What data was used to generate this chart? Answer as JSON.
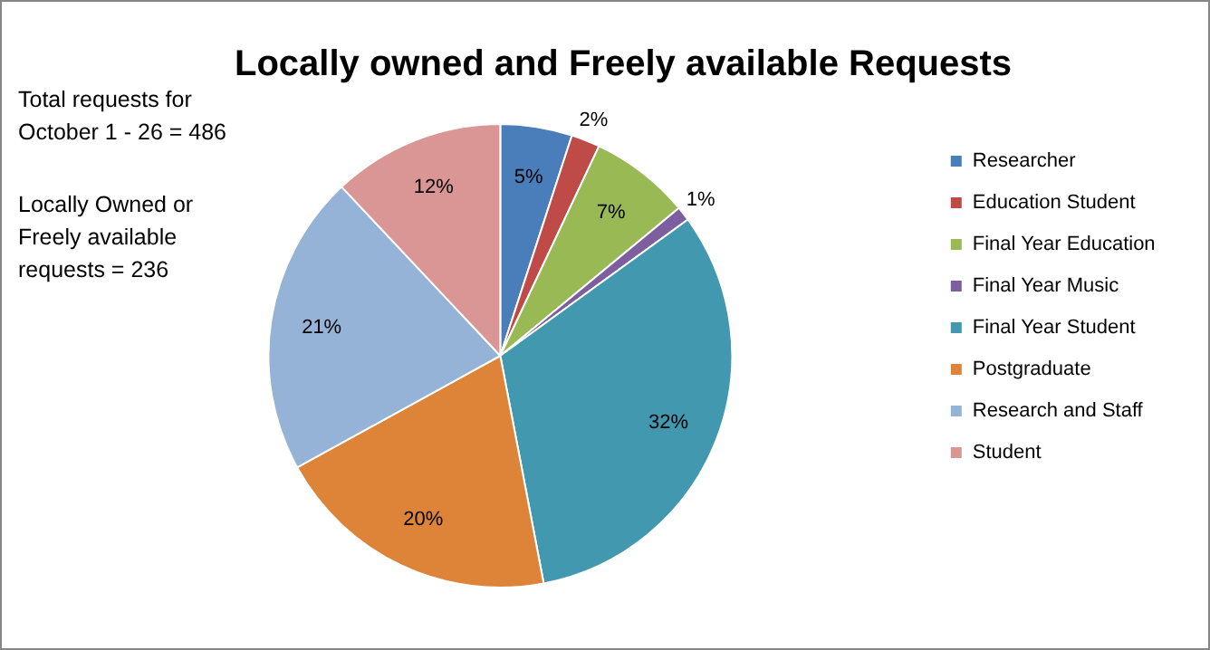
{
  "chart_data": {
    "type": "pie",
    "title": "Locally owned and Freely available Requests",
    "categories": [
      "Researcher",
      "Education Student",
      "Final Year Education",
      "Final Year Music",
      "Final Year Student",
      "Postgraduate",
      "Research and Staff",
      "Student"
    ],
    "values": [
      5,
      2,
      7,
      1,
      32,
      20,
      21,
      12
    ],
    "value_labels": [
      "5%",
      "2%",
      "7%",
      "1%",
      "32%",
      "20%",
      "21%",
      "12%"
    ],
    "colors": [
      "#4a7ebb",
      "#be4b48",
      "#98b954",
      "#7d5fa0",
      "#4198af",
      "#dd8439",
      "#95b3d7",
      "#d99694"
    ],
    "legend": "right",
    "annotations": [
      "Total requests for October 1 - 26 = 486",
      "Locally Owned or Freely available requests = 236"
    ]
  }
}
